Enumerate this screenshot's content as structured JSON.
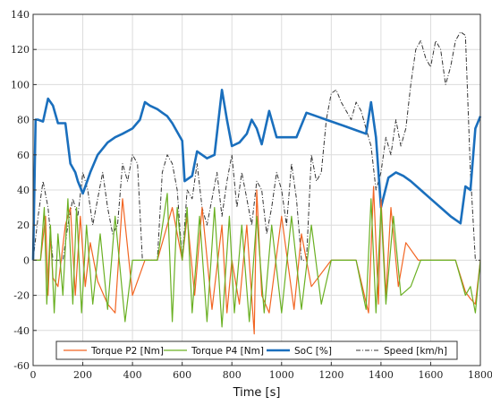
{
  "chart_data": {
    "type": "line",
    "title": "",
    "xlabel": "Time [s]",
    "ylabel": "",
    "xlim": [
      0,
      1800
    ],
    "ylim": [
      -60,
      140
    ],
    "xticks": [
      0,
      200,
      400,
      600,
      800,
      1000,
      1200,
      1400,
      1600,
      1800
    ],
    "yticks": [
      -60,
      -40,
      -20,
      0,
      20,
      40,
      60,
      80,
      100,
      120,
      140
    ],
    "grid": true,
    "legend_position": "bottom-center",
    "series": [
      {
        "name": "Speed [km/h]",
        "color": "#333333",
        "style": "dashdot",
        "x": [
          0,
          20,
          40,
          60,
          80,
          100,
          120,
          140,
          160,
          180,
          200,
          220,
          240,
          260,
          280,
          300,
          320,
          340,
          360,
          380,
          400,
          420,
          440,
          460,
          480,
          500,
          520,
          540,
          560,
          580,
          600,
          620,
          640,
          660,
          680,
          700,
          720,
          740,
          760,
          780,
          800,
          820,
          840,
          860,
          880,
          900,
          920,
          940,
          960,
          980,
          1000,
          1020,
          1040,
          1060,
          1080,
          1100,
          1120,
          1140,
          1160,
          1180,
          1200,
          1220,
          1240,
          1260,
          1280,
          1300,
          1320,
          1340,
          1360,
          1380,
          1400,
          1420,
          1440,
          1460,
          1480,
          1500,
          1520,
          1540,
          1560,
          1580,
          1600,
          1620,
          1640,
          1660,
          1680,
          1700,
          1720,
          1740,
          1760,
          1780,
          1800
        ],
        "values": [
          0,
          25,
          45,
          30,
          0,
          0,
          0,
          20,
          35,
          25,
          50,
          40,
          20,
          35,
          50,
          30,
          15,
          20,
          55,
          45,
          60,
          55,
          0,
          0,
          0,
          0,
          50,
          60,
          55,
          40,
          0,
          40,
          35,
          55,
          30,
          20,
          35,
          50,
          25,
          45,
          60,
          30,
          50,
          35,
          20,
          45,
          40,
          15,
          30,
          50,
          40,
          20,
          55,
          35,
          0,
          0,
          60,
          45,
          50,
          80,
          95,
          97,
          90,
          85,
          80,
          90,
          85,
          75,
          65,
          40,
          50,
          70,
          60,
          80,
          65,
          75,
          100,
          120,
          125,
          115,
          110,
          125,
          120,
          100,
          110,
          125,
          130,
          128,
          50,
          0,
          0
        ]
      },
      {
        "name": "SoC [%]",
        "color": "#1a6fbd",
        "style": "solid-thick",
        "x": [
          0,
          10,
          20,
          40,
          60,
          80,
          100,
          130,
          150,
          170,
          180,
          200,
          230,
          260,
          300,
          330,
          360,
          400,
          430,
          450,
          470,
          500,
          520,
          540,
          560,
          580,
          600,
          610,
          640,
          660,
          680,
          700,
          730,
          760,
          780,
          800,
          830,
          860,
          880,
          900,
          920,
          950,
          980,
          1010,
          1040,
          1060,
          1100,
          1140,
          1180,
          1220,
          1260,
          1300,
          1340,
          1360,
          1380,
          1400,
          1430,
          1460,
          1490,
          1520,
          1560,
          1600,
          1640,
          1680,
          1720,
          1740,
          1760,
          1780,
          1800
        ],
        "values": [
          0,
          80,
          80,
          79,
          92,
          88,
          78,
          78,
          55,
          50,
          45,
          38,
          50,
          60,
          67,
          70,
          72,
          75,
          80,
          90,
          88,
          86,
          84,
          82,
          78,
          73,
          68,
          45,
          48,
          62,
          60,
          58,
          60,
          97,
          80,
          65,
          67,
          72,
          80,
          75,
          66,
          85,
          70,
          70,
          70,
          70,
          84,
          82,
          80,
          78,
          76,
          74,
          72,
          90,
          70,
          30,
          47,
          50,
          48,
          45,
          40,
          35,
          30,
          25,
          21,
          42,
          40,
          75,
          82
        ]
      },
      {
        "name": "Torque P2 [Nm]",
        "color": "#f26522",
        "style": "solid",
        "x": [
          0,
          30,
          50,
          60,
          70,
          80,
          100,
          130,
          150,
          170,
          190,
          210,
          230,
          260,
          300,
          330,
          360,
          400,
          450,
          500,
          560,
          600,
          620,
          650,
          680,
          720,
          760,
          780,
          800,
          830,
          860,
          890,
          900,
          920,
          950,
          1000,
          1050,
          1080,
          1120,
          1200,
          1300,
          1350,
          1370,
          1390,
          1400,
          1420,
          1440,
          1470,
          1500,
          1550,
          1600,
          1650,
          1700,
          1740,
          1760,
          1780,
          1800
        ],
        "values": [
          0,
          0,
          25,
          -20,
          15,
          -10,
          -15,
          20,
          30,
          -20,
          25,
          -15,
          10,
          -12,
          -25,
          -30,
          35,
          -20,
          0,
          0,
          30,
          0,
          25,
          -20,
          30,
          -28,
          20,
          -30,
          0,
          -25,
          20,
          -42,
          40,
          -20,
          -30,
          25,
          -28,
          15,
          -15,
          0,
          0,
          -30,
          42,
          -25,
          35,
          -20,
          30,
          -15,
          10,
          0,
          0,
          0,
          0,
          -18,
          -22,
          -25,
          0
        ]
      },
      {
        "name": "Torque P4 [Nm]",
        "color": "#6ab023",
        "style": "solid",
        "x": [
          0,
          30,
          45,
          55,
          70,
          85,
          100,
          120,
          140,
          160,
          175,
          195,
          215,
          240,
          270,
          300,
          330,
          370,
          400,
          450,
          500,
          540,
          560,
          580,
          600,
          620,
          640,
          670,
          700,
          730,
          760,
          790,
          810,
          840,
          870,
          900,
          930,
          960,
          1000,
          1040,
          1080,
          1120,
          1160,
          1200,
          1300,
          1340,
          1360,
          1380,
          1400,
          1420,
          1450,
          1480,
          1520,
          1560,
          1600,
          1650,
          1700,
          1740,
          1760,
          1780,
          1800
        ],
        "values": [
          0,
          0,
          30,
          -25,
          20,
          -30,
          15,
          -20,
          35,
          -25,
          30,
          -30,
          20,
          -25,
          15,
          -28,
          25,
          -35,
          0,
          0,
          0,
          38,
          -35,
          30,
          0,
          30,
          -30,
          25,
          -35,
          30,
          -38,
          25,
          -30,
          20,
          -35,
          25,
          -30,
          20,
          -30,
          25,
          -28,
          20,
          -25,
          0,
          0,
          -28,
          35,
          -30,
          30,
          -25,
          25,
          -20,
          -15,
          0,
          0,
          0,
          0,
          -20,
          -15,
          -30,
          0
        ]
      }
    ]
  }
}
